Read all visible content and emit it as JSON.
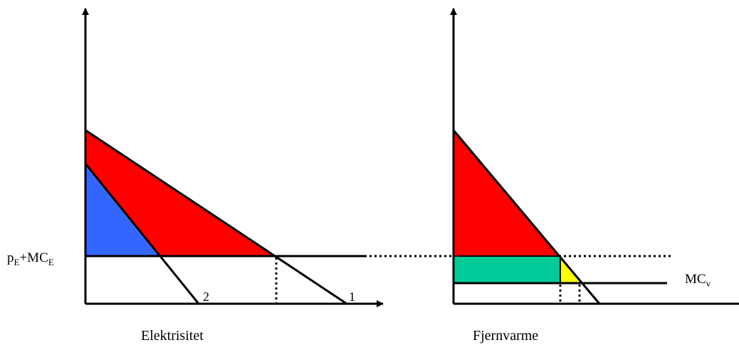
{
  "colors": {
    "red_area": "#ff0000",
    "blue_area": "#3366ff",
    "green_area": "#00cc99",
    "yellow_area": "#ffff00",
    "lines": "#000000"
  },
  "left_panel": {
    "caption": "Elektrisitet",
    "price_label": {
      "p": "p",
      "p_sub": "E",
      "plus_mc": "+MC",
      "mc_sub": "E"
    },
    "curve_labels": [
      "2",
      "1"
    ]
  },
  "right_panel": {
    "caption": "Fjernvarme",
    "mc_label": {
      "main": "MC",
      "sub": "v"
    }
  }
}
